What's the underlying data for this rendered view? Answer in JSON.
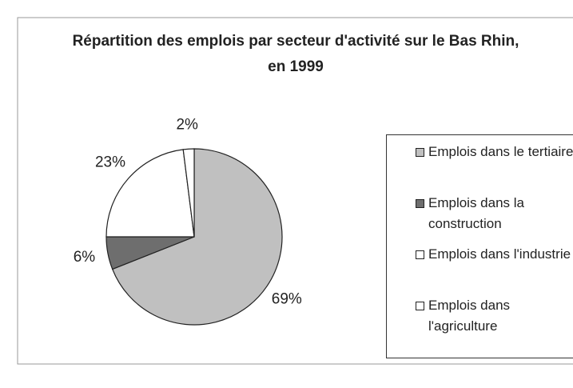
{
  "chart_data": {
    "type": "pie",
    "title": "Répartition des emplois par secteur d'activité sur le Bas Rhin, en 1999",
    "categories": [
      "Emplois dans le tertiaire",
      "Emplois dans la construction",
      "Emplois dans l'industrie",
      "Emplois dans l'agriculture"
    ],
    "values": [
      69,
      6,
      23,
      2
    ],
    "value_labels": [
      "69%",
      "6%",
      "23%",
      "2%"
    ],
    "colors": [
      "#c0c0c0",
      "#6e6e6e",
      "#ffffff",
      "#ffffff"
    ],
    "legend": "right"
  }
}
